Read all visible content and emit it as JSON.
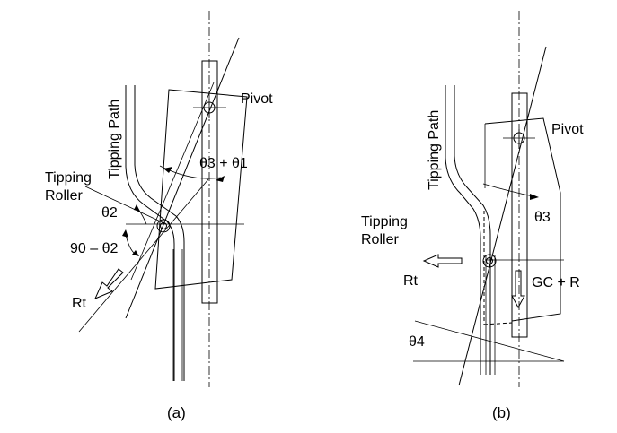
{
  "panel_a": {
    "caption": "(a)",
    "tipping_path_label": "Tipping Path",
    "pivot_label": "Pivot",
    "roller_label_line1": "Tipping",
    "roller_label_line2": "Roller",
    "angle_sum_label": "θ3 + θ1",
    "theta2_label": "θ2",
    "angle_90_label": "90 – θ2",
    "force_label": "Rt"
  },
  "panel_b": {
    "caption": "(b)",
    "tipping_path_label": "Tipping Path",
    "pivot_label": "Pivot",
    "roller_label_line1": "Tipping",
    "roller_label_line2": "Roller",
    "theta3_label": "θ3",
    "theta4_label": "θ4",
    "force_label": "Rt",
    "load_label": "GC + R"
  }
}
